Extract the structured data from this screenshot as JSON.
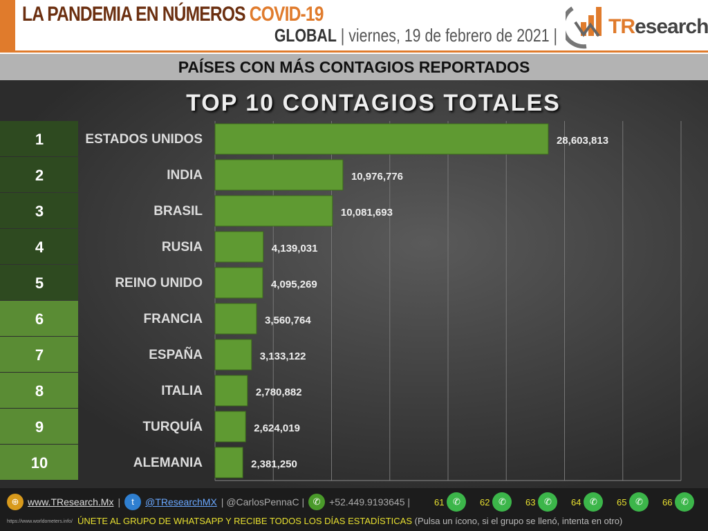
{
  "header": {
    "title": "LA PANDEMIA EN NÚMEROS",
    "title_accent": "COVID-19",
    "scope": "GLOBAL",
    "date": "| viernes, 19 de febrero de 2021 |",
    "logo_t": "TR",
    "logo_rest": "esearch"
  },
  "subtitle": "PAÍSES CON MÁS CONTAGIOS REPORTADOS",
  "chart_data": {
    "type": "bar",
    "orientation": "horizontal",
    "title": "TOP 10 CONTAGIOS TOTALES",
    "ranks": [
      "1",
      "2",
      "3",
      "4",
      "5",
      "6",
      "7",
      "8",
      "9",
      "10"
    ],
    "categories": [
      "ESTADOS UNIDOS",
      "INDIA",
      "BRASIL",
      "RUSIA",
      "REINO UNIDO",
      "FRANCIA",
      "ESPAÑA",
      "ITALIA",
      "TURQUÍA",
      "ALEMANIA"
    ],
    "values": [
      28603813,
      10976776,
      10081693,
      4139031,
      4095269,
      3560764,
      3133122,
      2780882,
      2624019,
      2381250
    ],
    "labels": [
      "28,603,813",
      "10,976,776",
      "10,081,693",
      "4,139,031",
      "4,095,269",
      "3,560,764",
      "3,133,122",
      "2,780,882",
      "2,624,019",
      "2,381,250"
    ],
    "xlim": [
      0,
      40000000
    ],
    "grid": true,
    "bar_color": "#5f9a32",
    "rank_colors": [
      "#2e4a20",
      "#5a8c34"
    ]
  },
  "footer": {
    "web": "www.TResearch.Mx",
    "twitter": "@TResearchMX",
    "personal": "| @CarlosPennaC |",
    "phone": "+52.449.9193645 |",
    "groups": [
      "61",
      "62",
      "63",
      "64",
      "65",
      "66"
    ],
    "source": "https://www.worldometers.info/",
    "cta": "ÚNETE AL GRUPO DE WHATSAPP Y RECIBE TODOS LOS DÍAS ESTADÍSTICAS",
    "cta_note": "(Pulsa un ícono, si el grupo se llenó, intenta en otro)"
  }
}
